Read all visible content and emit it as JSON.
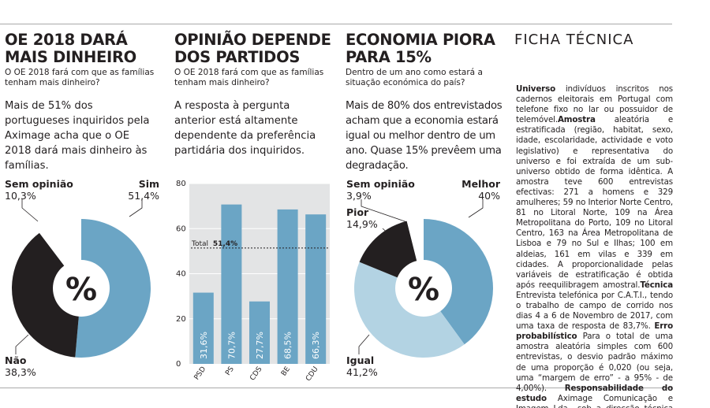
{
  "colors": {
    "blue": "#6ba5c5",
    "light_blue": "#b3d3e3",
    "black": "#231f20",
    "white": "#ffffff"
  },
  "col1": {
    "title_line1": "OE 2018 DARÁ",
    "title_line2": "MAIS DINHEIRO",
    "question": "O OE 2018 fará com que as famílias tenham mais dinheiro?",
    "lede": "Mais de 51% dos portugueses inquiridos pela Aximage acha que o OE 2018 dará mais dinheiro às famílias."
  },
  "col2": {
    "title_line1": "OPINIÃO DEPENDE",
    "title_line2": "DOS PARTIDOS",
    "question": "O OE 2018 fará com que as famílias tenham mais dinheiro?",
    "lede": "A resposta à pergunta anterior está altamente dependente da preferência partidária dos inquiridos."
  },
  "col3": {
    "title_line1": "ECONOMIA PIORA",
    "title_line2": "PARA 15%",
    "question": "Dentro de um ano como estará a situação económica do país?",
    "lede": "Mais de 80% dos entrevistados acham que a economia estará igual ou melhor dentro de um ano. Quase 15% prevêem uma degradação."
  },
  "ficha": {
    "title": "FICHA TÉCNICA",
    "universo_label": "Universo",
    "universo_text": "indivíduos inscritos nos cadernos eleitorais em Portugal com telefone fixo no lar ou possuidor de telemóvel.",
    "amostra_label": "Amostra",
    "amostra_text": "aleatória e estratificada (região, habitat, sexo, idade, escolaridade, actividade e voto legislativo) e representativa do universo e foi extraída de um sub-universo obtido de forma idêntica. A amostra teve 600 entrevistas efectivas: 271 a homens e 329 amulheres; 59 no Interior Norte Centro, 81 no Litoral Norte, 109 na Área Metropolitana do Porto, 109 no Litoral Centro, 163 na Área Metropolitana de Lisboa e 79 no Sul e Ilhas; 100 em aldeias, 161 em vilas e 339 em cidades. A proporcionalidade pelas variáveis de estratificação é obtida após reequilibragem amostral.",
    "tecnica_label": "Técnica",
    "tecnica_text": "Entrevista telefónica por C.A.T.I., tendo o trabalho de campo de corrido nos dias 4 a 6 de Novembro de 2017, com uma taxa de resposta de 83,7%.",
    "erro_label": "Erro probabilístico",
    "erro_text": "Para o total de uma amostra aleatória simples com 600 entrevistas, o desvio padrão máximo de uma proporção é 0,020 (ou seja, uma “margem de erro” - a 95% - de 4,00%).",
    "resp_label": "Responsabilidade do estudo",
    "resp_text": "Aximage Comunicação e Imagem Lda., sob a direcção técnica de Jorge de Sá e de João Queiroz."
  },
  "chart_data": [
    {
      "type": "pie",
      "title": "OE 2018 fará com que as famílias tenham mais dinheiro?",
      "center_label": "%",
      "slices": [
        {
          "name": "Sim",
          "value": 51.4,
          "label": "51,4%",
          "color": "#6ba5c5"
        },
        {
          "name": "Não",
          "value": 38.3,
          "label": "38,3%",
          "color": "#231f20"
        },
        {
          "name": "Sem opinião",
          "value": 10.3,
          "label": "10,3%",
          "color": "#ffffff"
        }
      ]
    },
    {
      "type": "bar",
      "title": "Opinião depende dos partidos",
      "categories": [
        "PSD",
        "PS",
        "CDS",
        "BE",
        "CDU"
      ],
      "values": [
        31.6,
        70.7,
        27.7,
        68.5,
        66.3
      ],
      "value_labels": [
        "31,6%",
        "70,7%",
        "27,7%",
        "68,5%",
        "66,3%"
      ],
      "yticks": [
        0,
        20,
        40,
        60,
        80
      ],
      "ylim": [
        0,
        80
      ],
      "reference_line": {
        "label": "Total",
        "value": 51.4,
        "value_label": "51,4%"
      }
    },
    {
      "type": "pie",
      "title": "Dentro de um ano como estará a situação económica do país?",
      "center_label": "%",
      "slices": [
        {
          "name": "Melhor",
          "value": 40,
          "label": "40%",
          "color": "#6ba5c5"
        },
        {
          "name": "Igual",
          "value": 41.2,
          "label": "41,2%",
          "color": "#b3d3e3"
        },
        {
          "name": "Pior",
          "value": 14.9,
          "label": "14,9%",
          "color": "#231f20"
        },
        {
          "name": "Sem opinião",
          "value": 3.9,
          "label": "3,9%",
          "color": "#ffffff"
        }
      ]
    }
  ]
}
